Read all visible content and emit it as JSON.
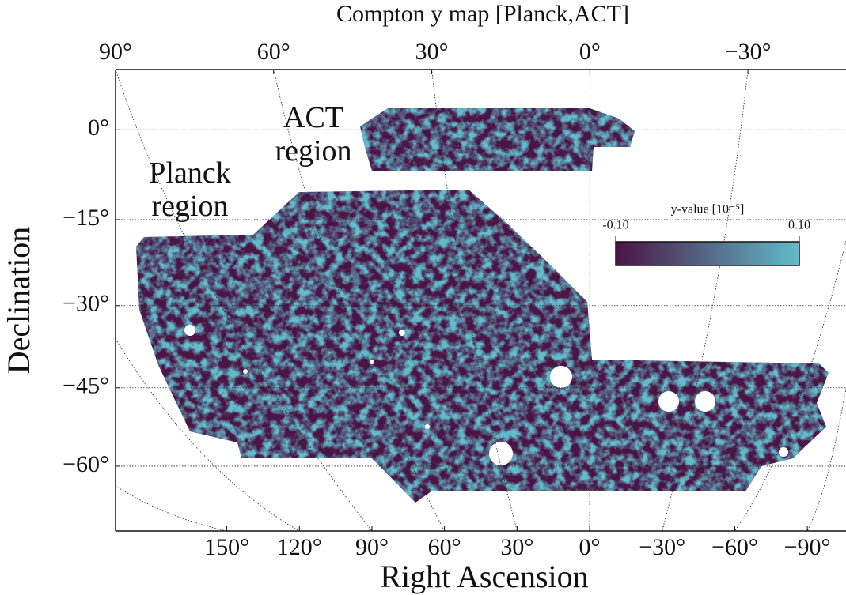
{
  "chart_data": {
    "type": "skymap",
    "title": "Compton y map [Planck,ACT]",
    "xlabel": "Right Ascension",
    "ylabel": "Declination",
    "annotations": [
      "ACT region",
      "Planck region"
    ],
    "xlim": [
      90,
      -48.6
    ],
    "xticks": [
      {
        "value": 90,
        "label": "90°"
      },
      {
        "value": 60,
        "label": "60°"
      },
      {
        "value": 30,
        "label": "30°"
      },
      {
        "value": 0,
        "label": "0°"
      },
      {
        "value": -30,
        "label": "−30°"
      }
    ],
    "x2lim": [
      196,
      -106
    ],
    "x2ticks": [
      {
        "value": 150,
        "label": "150°"
      },
      {
        "value": 120,
        "label": "120°"
      },
      {
        "value": 90,
        "label": "90°"
      },
      {
        "value": 60,
        "label": "60°"
      },
      {
        "value": 30,
        "label": "30°"
      },
      {
        "value": 0,
        "label": "0°"
      },
      {
        "value": -30,
        "label": "−30°"
      },
      {
        "value": -60,
        "label": "−60°"
      },
      {
        "value": -90,
        "label": "−90°"
      }
    ],
    "ylim": [
      -73,
      10
    ],
    "yticks": [
      {
        "value": 0,
        "label": "0°"
      },
      {
        "value": -15,
        "label": "−15°"
      },
      {
        "value": -30,
        "label": "−30°"
      },
      {
        "value": -45,
        "label": "−45°"
      },
      {
        "value": -60,
        "label": "−60°"
      }
    ],
    "grid": true,
    "colorbar": {
      "label": "y-value [10⁻⁵]",
      "lim": [
        -0.1,
        0.1
      ],
      "ticks": [
        {
          "value": -0.1,
          "label": "-0.10"
        },
        {
          "value": 0.1,
          "label": "0.10"
        }
      ],
      "colors": [
        "#4a1444",
        "#62bccb"
      ]
    }
  }
}
